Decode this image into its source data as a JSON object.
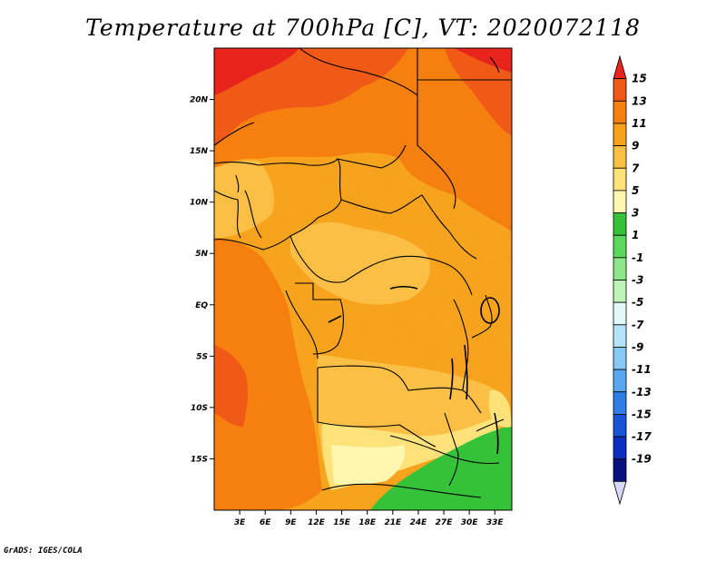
{
  "title": "Temperature at 700hPa [C], VT: 2020072118",
  "credit": "GrADS: IGES/COLA",
  "x_axis": {
    "ticks": [
      {
        "value": 3,
        "label": "3E"
      },
      {
        "value": 6,
        "label": "6E"
      },
      {
        "value": 9,
        "label": "9E"
      },
      {
        "value": 12,
        "label": "12E"
      },
      {
        "value": 15,
        "label": "15E"
      },
      {
        "value": 18,
        "label": "18E"
      },
      {
        "value": 21,
        "label": "21E"
      },
      {
        "value": 24,
        "label": "24E"
      },
      {
        "value": 27,
        "label": "27E"
      },
      {
        "value": 30,
        "label": "30E"
      },
      {
        "value": 33,
        "label": "33E"
      }
    ],
    "range": [
      0,
      35
    ]
  },
  "y_axis": {
    "ticks": [
      {
        "value": 20,
        "label": "20N"
      },
      {
        "value": 15,
        "label": "15N"
      },
      {
        "value": 10,
        "label": "10N"
      },
      {
        "value": 5,
        "label": "5N"
      },
      {
        "value": 0,
        "label": "EQ"
      },
      {
        "value": -5,
        "label": "5S"
      },
      {
        "value": -10,
        "label": "10S"
      },
      {
        "value": -15,
        "label": "15S"
      }
    ],
    "range": [
      -20,
      25
    ]
  },
  "colorbar": {
    "labels": [
      "15",
      "13",
      "11",
      "9",
      "7",
      "5",
      "3",
      "1",
      "-1",
      "-3",
      "-5",
      "-7",
      "-9",
      "-11",
      "-13",
      "-15",
      "-17",
      "-19"
    ],
    "colors": [
      "#e8241c",
      "#f05a16",
      "#f57f0f",
      "#f7a21b",
      "#fbbf45",
      "#fde27a",
      "#fff7b0",
      "#35c238",
      "#5cd85c",
      "#8ee68a",
      "#bdf3b7",
      "#e2f8f8",
      "#b5e4fa",
      "#87c8f6",
      "#58a7f0",
      "#2e7ee6",
      "#1755d6",
      "#0b2ec0",
      "#08127e",
      "#d8d8f8"
    ]
  },
  "legend": "temperature"
}
